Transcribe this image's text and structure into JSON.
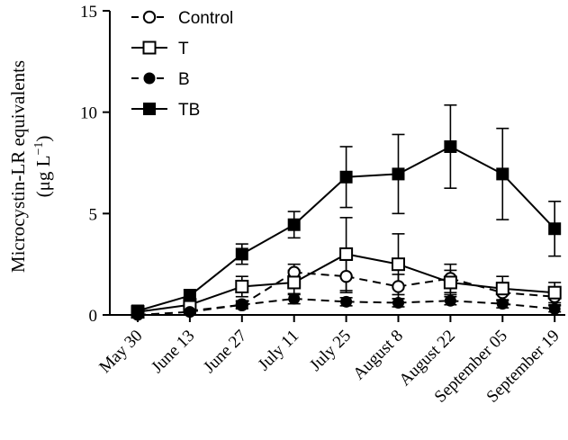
{
  "chart_data": {
    "type": "line",
    "title": "",
    "xlabel": "",
    "ylabel_line1": "Microcystin-LR equivalents",
    "ylabel_line2_prefix": "(μg L",
    "ylabel_line2_sup": "−1",
    "ylabel_line2_suffix": ")",
    "ylim": [
      0,
      15
    ],
    "yticks": [
      0,
      5,
      10,
      15
    ],
    "categories": [
      "May 30",
      "June 13",
      "June 27",
      "July 11",
      "July 25",
      "August 8",
      "August 22",
      "September 05",
      "September 19"
    ],
    "grid": false,
    "legend_position": "top-left",
    "series": [
      {
        "name": "Control",
        "marker": "circle-open",
        "line": "dashed",
        "values": [
          null,
          0.2,
          0.5,
          2.1,
          1.9,
          1.4,
          1.8,
          1.1,
          0.9
        ],
        "errors": [
          null,
          0.1,
          0.2,
          0.4,
          0.8,
          0.6,
          0.7,
          0.5,
          0.4
        ]
      },
      {
        "name": "T",
        "marker": "square-open",
        "line": "solid",
        "values": [
          0.15,
          0.5,
          1.4,
          1.6,
          3.0,
          2.5,
          1.6,
          1.3,
          1.1
        ],
        "errors": [
          0.1,
          0.2,
          0.5,
          0.6,
          1.8,
          1.5,
          0.6,
          0.6,
          0.5
        ]
      },
      {
        "name": "B",
        "marker": "circle-filled",
        "line": "dashed",
        "values": [
          0.0,
          0.15,
          0.5,
          0.8,
          0.65,
          0.6,
          0.7,
          0.55,
          0.3
        ],
        "errors": [
          0.05,
          0.1,
          0.15,
          0.25,
          0.2,
          0.2,
          0.2,
          0.2,
          0.15
        ]
      },
      {
        "name": "TB",
        "marker": "square-filled",
        "line": "solid",
        "values": [
          0.2,
          0.95,
          3.0,
          4.45,
          6.8,
          6.95,
          8.3,
          6.95,
          4.25
        ],
        "errors": [
          0.15,
          0.3,
          0.5,
          0.65,
          1.5,
          1.95,
          2.05,
          2.25,
          1.35
        ]
      }
    ]
  }
}
